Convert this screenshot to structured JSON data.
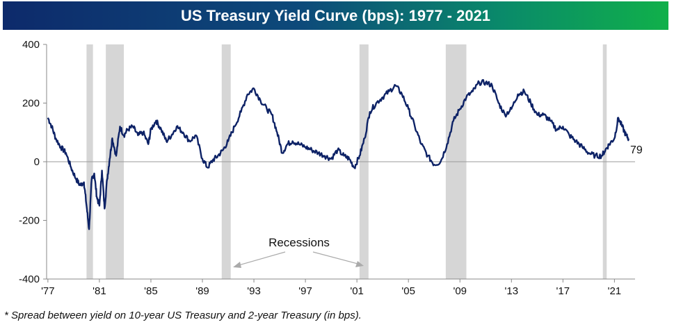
{
  "title": "US Treasury Yield Curve (bps): 1977 - 2021",
  "footnote": "* Spread between yield on 10-year US Treasury and 2-year Treasury (in bps).",
  "annotation": "Recessions",
  "last_value_label": "79",
  "chart_data": {
    "type": "line",
    "title": "US Treasury Yield Curve (bps): 1977 - 2021",
    "xlabel": "",
    "ylabel": "",
    "xlim": [
      1976.9,
      2022.6
    ],
    "ylim": [
      -400,
      400
    ],
    "yticks": [
      400,
      200,
      0,
      -200,
      -400
    ],
    "xticks": [
      {
        "year": 1977,
        "label": "'77"
      },
      {
        "year": 1981,
        "label": "'81"
      },
      {
        "year": 1985,
        "label": "'85"
      },
      {
        "year": 1989,
        "label": "'89"
      },
      {
        "year": 1993,
        "label": "'93"
      },
      {
        "year": 1997,
        "label": "'97"
      },
      {
        "year": 2001,
        "label": "'01"
      },
      {
        "year": 2005,
        "label": "'05"
      },
      {
        "year": 2009,
        "label": "'09"
      },
      {
        "year": 2013,
        "label": "'13"
      },
      {
        "year": 2017,
        "label": "'17"
      },
      {
        "year": 2021,
        "label": "'21"
      }
    ],
    "grid": false,
    "zero_line": true,
    "recessions": [
      [
        1980.0,
        1980.5
      ],
      [
        1981.5,
        1982.9
      ],
      [
        1990.5,
        1991.2
      ],
      [
        2001.2,
        2001.9
      ],
      [
        2007.9,
        2009.5
      ],
      [
        2020.1,
        2020.4
      ]
    ],
    "series": [
      {
        "color": "#0d2266",
        "x": [
          1977.0,
          1977.3,
          1977.6,
          1978.0,
          1978.4,
          1978.8,
          1979.2,
          1979.5,
          1979.8,
          1980.0,
          1980.2,
          1980.4,
          1980.6,
          1980.8,
          1981.0,
          1981.2,
          1981.4,
          1981.6,
          1981.8,
          1982.0,
          1982.3,
          1982.6,
          1982.9,
          1983.2,
          1983.6,
          1984.0,
          1984.4,
          1984.8,
          1985.0,
          1985.4,
          1985.8,
          1986.2,
          1986.6,
          1987.0,
          1987.5,
          1988.0,
          1988.5,
          1989.0,
          1989.4,
          1989.8,
          1990.2,
          1990.6,
          1991.0,
          1991.5,
          1992.0,
          1992.5,
          1993.0,
          1993.5,
          1994.0,
          1994.4,
          1994.8,
          1995.2,
          1995.6,
          1996.0,
          1996.5,
          1997.0,
          1997.5,
          1998.0,
          1998.5,
          1999.0,
          1999.5,
          2000.0,
          2000.4,
          2000.8,
          2001.2,
          2001.6,
          2002.0,
          2002.5,
          2003.0,
          2003.5,
          2004.0,
          2004.5,
          2005.0,
          2005.5,
          2006.0,
          2006.5,
          2007.0,
          2007.5,
          2008.0,
          2008.5,
          2009.0,
          2009.5,
          2010.0,
          2010.5,
          2011.0,
          2011.5,
          2012.0,
          2012.5,
          2013.0,
          2013.5,
          2014.0,
          2014.5,
          2015.0,
          2015.5,
          2016.0,
          2016.5,
          2017.0,
          2017.5,
          2018.0,
          2018.5,
          2019.0,
          2019.5,
          2020.0,
          2020.3,
          2020.6,
          2021.0,
          2021.3,
          2021.6,
          2021.9,
          2022.1
        ],
        "y": [
          150,
          120,
          80,
          50,
          30,
          -20,
          -60,
          -80,
          -70,
          -150,
          -230,
          -60,
          -40,
          -120,
          -150,
          -30,
          -160,
          -60,
          10,
          80,
          20,
          120,
          90,
          110,
          120,
          90,
          100,
          60,
          110,
          140,
          110,
          70,
          90,
          120,
          100,
          70,
          90,
          10,
          -20,
          5,
          20,
          40,
          70,
          120,
          170,
          230,
          250,
          210,
          180,
          160,
          100,
          30,
          60,
          70,
          60,
          50,
          40,
          30,
          20,
          10,
          40,
          20,
          10,
          -20,
          20,
          80,
          170,
          200,
          220,
          240,
          260,
          230,
          180,
          120,
          60,
          20,
          -10,
          0,
          60,
          140,
          180,
          220,
          240,
          270,
          270,
          260,
          200,
          160,
          180,
          230,
          240,
          200,
          160,
          160,
          140,
          110,
          120,
          90,
          70,
          50,
          30,
          20,
          20,
          40,
          60,
          80,
          150,
          120,
          90,
          79
        ]
      }
    ]
  }
}
